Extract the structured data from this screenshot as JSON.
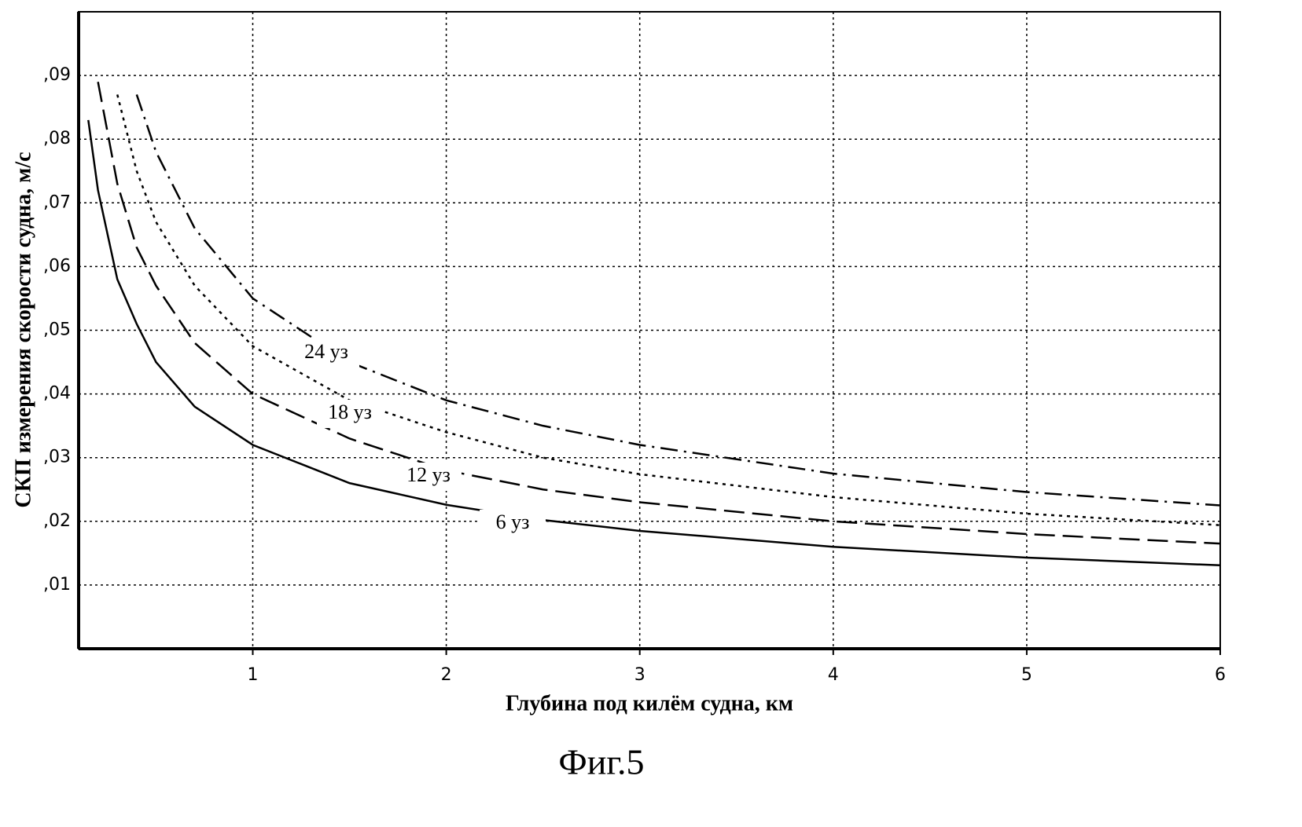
{
  "chart_data": {
    "type": "line",
    "caption": "Фиг.5",
    "x_label": "Глубина под килём судна, км",
    "y_label": "СКП измерения скорости судна, м/с",
    "x": [
      0.15,
      0.2,
      0.3,
      0.4,
      0.5,
      0.7,
      1,
      1.5,
      2,
      2.5,
      3,
      4,
      5,
      6
    ],
    "series": [
      {
        "name": "6 уз",
        "color": "#000000",
        "dash": "none",
        "values": [
          0.083,
          0.072,
          0.058,
          0.051,
          0.045,
          0.038,
          0.032,
          0.026,
          0.0226,
          0.0202,
          0.0185,
          0.016,
          0.0143,
          0.0131
        ]
      },
      {
        "name": "12 уз",
        "color": "#000000",
        "dash": "26 10",
        "values": [
          null,
          0.089,
          0.073,
          0.063,
          0.057,
          0.048,
          0.04,
          0.033,
          0.028,
          0.025,
          0.023,
          0.02,
          0.018,
          0.0165
        ]
      },
      {
        "name": "18 уз",
        "color": "#000000",
        "dash": "4 6",
        "values": [
          null,
          null,
          0.087,
          0.075,
          0.067,
          0.057,
          0.0475,
          0.039,
          0.034,
          0.03,
          0.0274,
          0.0238,
          0.0212,
          0.0194
        ]
      },
      {
        "name": "24 уз",
        "color": "#000000",
        "dash": "22 8 3 8",
        "values": [
          null,
          null,
          null,
          0.087,
          0.078,
          0.066,
          0.055,
          0.045,
          0.039,
          0.035,
          0.032,
          0.0275,
          0.0246,
          0.0225
        ]
      }
    ],
    "xlim": [
      0.1,
      6
    ],
    "ylim": [
      0,
      0.1
    ],
    "xticks": [
      1,
      2,
      3,
      4,
      5,
      6
    ],
    "yticks": [
      {
        "value": 0.01,
        "label": ",01"
      },
      {
        "value": 0.02,
        "label": ",02"
      },
      {
        "value": 0.03,
        "label": ",03"
      },
      {
        "value": 0.04,
        "label": ",04"
      },
      {
        "value": 0.05,
        "label": ",05"
      },
      {
        "value": 0.06,
        "label": ",06"
      },
      {
        "value": 0.07,
        "label": ",07"
      },
      {
        "value": 0.08,
        "label": ",08"
      },
      {
        "value": 0.09,
        "label": ",09"
      }
    ],
    "grid": true
  }
}
